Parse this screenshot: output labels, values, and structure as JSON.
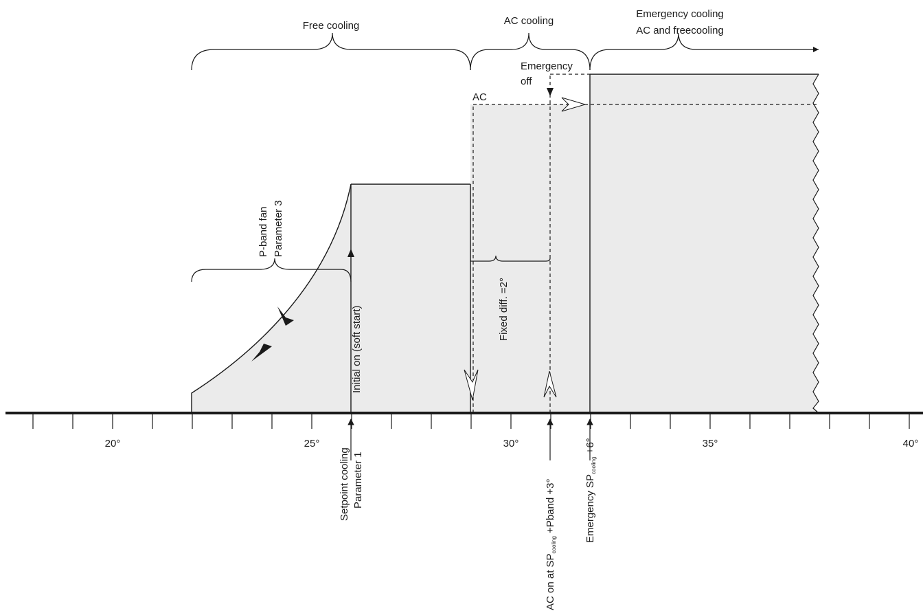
{
  "regions": {
    "free_cooling": "Free cooling",
    "ac_cooling": "AC cooling",
    "emergency_line1": "Emergency cooling",
    "emergency_line2": "AC and freecooling"
  },
  "labels": {
    "emergency_off_1": "Emergency",
    "emergency_off_2": "off",
    "ac": "AC",
    "pband_1": "P-band fan",
    "pband_2": "Parameter 3",
    "initial_on": "Initial on (soft start)",
    "fixed_diff": "Fixed diff. =2°"
  },
  "axis": {
    "ticks": [
      "20°",
      "25°",
      "30°",
      "35°",
      "40°"
    ]
  },
  "markers": {
    "setpoint_1": "Setpoint cooling",
    "setpoint_2": "Parameter 1",
    "ac_on_a": "AC on at SP",
    "ac_on_sub": "cooling",
    "ac_on_b": " +Pband +3°",
    "emerg_a": "Emergency SP",
    "emerg_sub": "cooling",
    "emerg_b": " +6°"
  },
  "colors": {
    "fill": "#ebebeb",
    "ink": "#1a1a1a"
  }
}
